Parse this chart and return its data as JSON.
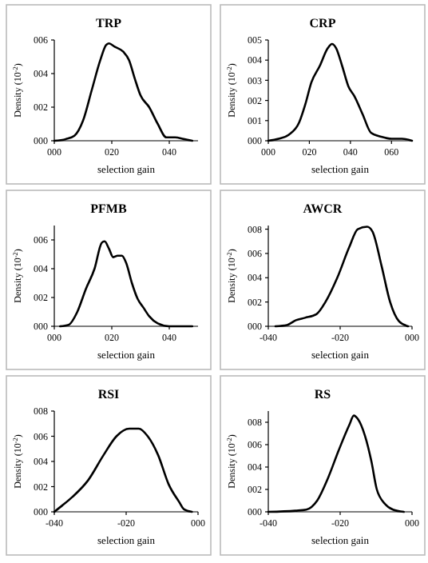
{
  "chart_data": [
    {
      "type": "line",
      "title": "TRP",
      "xlabel": "selection gain",
      "ylabel": "Density (10$^{-2}$)",
      "color": "#000000",
      "xlim": [
        0,
        50
      ],
      "ylim": [
        0,
        6
      ],
      "xticks": [
        {
          "value": 0,
          "label": "000"
        },
        {
          "value": 20,
          "label": "020"
        },
        {
          "value": 40,
          "label": "040"
        }
      ],
      "yticks": [
        {
          "value": 0,
          "label": "000"
        },
        {
          "value": 2,
          "label": "002"
        },
        {
          "value": 4,
          "label": "004"
        },
        {
          "value": 6,
          "label": "006"
        }
      ],
      "x": [
        0,
        4,
        7,
        10,
        13,
        16,
        18,
        19,
        21,
        24,
        26,
        28,
        30,
        33,
        36,
        39,
        42,
        45,
        48
      ],
      "values": [
        0,
        0.1,
        0.3,
        1.2,
        3,
        4.8,
        5.7,
        5.8,
        5.6,
        5.3,
        4.8,
        3.7,
        2.7,
        2,
        1,
        0.2,
        0.2,
        0.1,
        0
      ]
    },
    {
      "type": "line",
      "title": "CRP",
      "xlabel": "selection gain",
      "ylabel": "Density (10$^{-2}$)",
      "color": "#000000",
      "xlim": [
        0,
        70
      ],
      "ylim": [
        0,
        5
      ],
      "xticks": [
        {
          "value": 0,
          "label": "000"
        },
        {
          "value": 20,
          "label": "020"
        },
        {
          "value": 40,
          "label": "040"
        },
        {
          "value": 60,
          "label": "060"
        }
      ],
      "yticks": [
        {
          "value": 0,
          "label": "000"
        },
        {
          "value": 1,
          "label": "001"
        },
        {
          "value": 2,
          "label": "002"
        },
        {
          "value": 3,
          "label": "003"
        },
        {
          "value": 4,
          "label": "004"
        },
        {
          "value": 5,
          "label": "005"
        }
      ],
      "x": [
        0,
        5,
        10,
        15,
        18,
        21,
        25,
        29,
        31,
        33,
        36,
        39,
        42,
        46,
        50,
        55,
        60,
        65,
        70
      ],
      "values": [
        0,
        0.1,
        0.3,
        0.9,
        1.8,
        2.9,
        3.7,
        4.6,
        4.8,
        4.6,
        3.7,
        2.7,
        2.2,
        1.3,
        0.4,
        0.2,
        0.1,
        0.1,
        0
      ]
    },
    {
      "type": "line",
      "title": "PFMB",
      "xlabel": "selection gain",
      "ylabel": "Density (10$^{-2}$)",
      "color": "#000000",
      "xlim": [
        0,
        50
      ],
      "ylim": [
        0,
        7
      ],
      "xticks": [
        {
          "value": 0,
          "label": "000"
        },
        {
          "value": 20,
          "label": "020"
        },
        {
          "value": 40,
          "label": "040"
        }
      ],
      "yticks": [
        {
          "value": 0,
          "label": "000"
        },
        {
          "value": 2,
          "label": "002"
        },
        {
          "value": 4,
          "label": "004"
        },
        {
          "value": 6,
          "label": "006"
        }
      ],
      "x": [
        2,
        5,
        8,
        11,
        14,
        16.5,
        17.5,
        19,
        20.5,
        22,
        23.5,
        25,
        27,
        29,
        31,
        33,
        36,
        40,
        48
      ],
      "values": [
        0,
        0.1,
        1,
        2.6,
        4,
        5.8,
        5.9,
        5.4,
        4.8,
        4.9,
        4.9,
        4.4,
        3,
        1.9,
        1.3,
        0.7,
        0.2,
        0,
        0
      ]
    },
    {
      "type": "line",
      "title": "AWCR",
      "xlabel": "selection gain",
      "ylabel": "Density (10$^{-2}$)",
      "color": "#000000",
      "xlim": [
        -40,
        0
      ],
      "ylim": [
        0,
        8.3
      ],
      "xticks": [
        {
          "value": -40,
          "label": "-040"
        },
        {
          "value": -20,
          "label": "-020"
        },
        {
          "value": 0,
          "label": "000"
        }
      ],
      "yticks": [
        {
          "value": 0,
          "label": "000"
        },
        {
          "value": 2,
          "label": "002"
        },
        {
          "value": 4,
          "label": "004"
        },
        {
          "value": 6,
          "label": "006"
        },
        {
          "value": 8,
          "label": "008"
        }
      ],
      "x": [
        -38,
        -34.8,
        -32.3,
        -29.8,
        -26.6,
        -24.1,
        -20.8,
        -17.5,
        -15.1,
        -12.5,
        -11,
        -8.5,
        -6.1,
        -3.6,
        -1.1
      ],
      "values": [
        0,
        0.1,
        0.5,
        0.7,
        1,
        2,
        4,
        6.5,
        8,
        8.2,
        7.8,
        5,
        2,
        0.4,
        0
      ]
    },
    {
      "type": "line",
      "title": "RSI",
      "xlabel": "selection gain",
      "ylabel": "Density (10$^{-2}$)",
      "color": "#000000",
      "xlim": [
        -40,
        0
      ],
      "ylim": [
        0,
        8
      ],
      "xticks": [
        {
          "value": -40,
          "label": "-040"
        },
        {
          "value": -20,
          "label": "-020"
        },
        {
          "value": 0,
          "label": "000"
        }
      ],
      "yticks": [
        {
          "value": 0,
          "label": "000"
        },
        {
          "value": 2,
          "label": "002"
        },
        {
          "value": 4,
          "label": "004"
        },
        {
          "value": 6,
          "label": "006"
        },
        {
          "value": 8,
          "label": "008"
        }
      ],
      "x": [
        -40,
        -37.8,
        -34.9,
        -30.6,
        -26.3,
        -22.7,
        -19.1,
        -16.5,
        -14,
        -11.1,
        -8.2,
        -5.3,
        -3.9,
        -1.7
      ],
      "values": [
        0,
        0.5,
        1.2,
        2.5,
        4.5,
        6,
        6.6,
        6.6,
        6,
        4.5,
        2.2,
        0.8,
        0.2,
        0
      ]
    },
    {
      "type": "line",
      "title": "RS",
      "xlabel": "selection gain",
      "ylabel": "Density (10$^{-2}$)",
      "color": "#000000",
      "xlim": [
        -40,
        0
      ],
      "ylim": [
        0,
        9
      ],
      "xticks": [
        {
          "value": -40,
          "label": "-040"
        },
        {
          "value": -20,
          "label": "-020"
        },
        {
          "value": 0,
          "label": "000"
        }
      ],
      "yticks": [
        {
          "value": 0,
          "label": "000"
        },
        {
          "value": 2,
          "label": "002"
        },
        {
          "value": 4,
          "label": "004"
        },
        {
          "value": 6,
          "label": "006"
        },
        {
          "value": 8,
          "label": "008"
        }
      ],
      "x": [
        -40,
        -32.5,
        -29.4,
        -26.4,
        -23.4,
        -20.4,
        -17.4,
        -16.2,
        -15.1,
        -13.1,
        -11.3,
        -9.8,
        -7.5,
        -5.3,
        -2.3
      ],
      "values": [
        0,
        0.1,
        0.2,
        1,
        3,
        5.5,
        7.8,
        8.6,
        8.3,
        6.8,
        4.5,
        2,
        0.7,
        0.2,
        0
      ]
    }
  ]
}
